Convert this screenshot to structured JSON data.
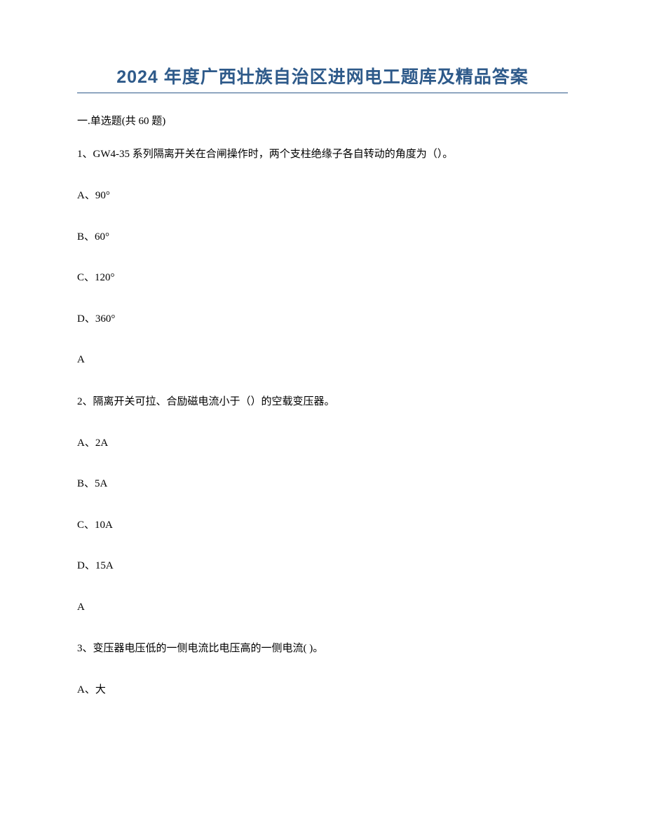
{
  "title": "2024 年度广西壮族自治区进网电工题库及精品答案",
  "section_heading": "一.单选题(共 60 题)",
  "title_color": "#2e5a8a",
  "title_fontsize": 25,
  "body_fontsize": 15,
  "background_color": "#ffffff",
  "text_color": "#000000",
  "questions": [
    {
      "number": "1、",
      "text": "GW4-35 系列隔离开关在合闸操作时，两个支柱绝缘子各自转动的角度为（）。",
      "options": [
        "A、90°",
        "B、60°",
        "C、120°",
        "D、360°"
      ],
      "answer": "A"
    },
    {
      "number": "2、",
      "text": "隔离开关可拉、合励磁电流小于（）的空载变压器。",
      "options": [
        "A、2A",
        "B、5A",
        "C、10A",
        "D、15A"
      ],
      "answer": "A"
    },
    {
      "number": "3、",
      "text": "变压器电压低的一侧电流比电压高的一侧电流( )。",
      "options": [
        "A、大"
      ],
      "answer": null
    }
  ]
}
